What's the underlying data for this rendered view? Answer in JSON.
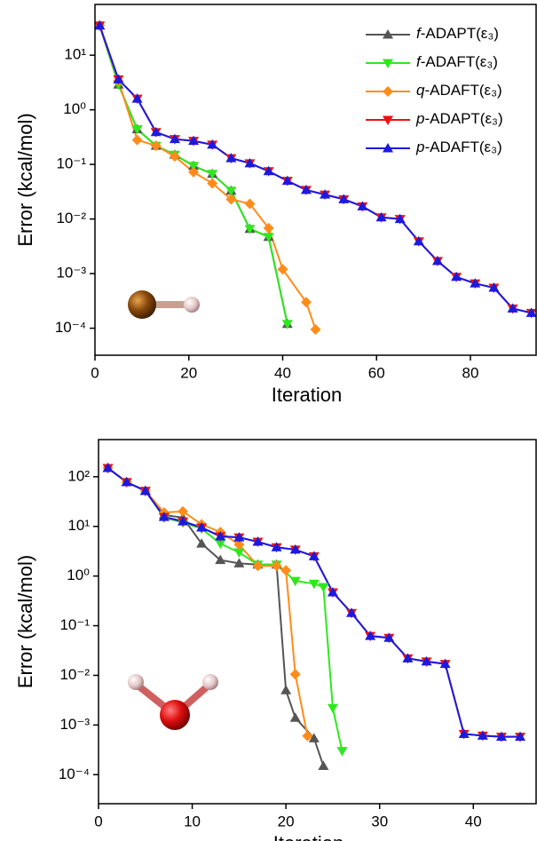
{
  "chart_data": [
    {
      "type": "line",
      "x_label": "Iteration",
      "y_label": "Error (kcal/mol)",
      "yscale": "log",
      "legend": "upper right",
      "xlim": [
        0,
        94
      ],
      "xticks": [
        0,
        20,
        40,
        60,
        80
      ],
      "ylim": [
        3.2e-05,
        85
      ],
      "yticks": [
        {
          "value": 0.0001,
          "label": "10⁻⁴"
        },
        {
          "value": 0.001,
          "label": "10⁻³"
        },
        {
          "value": 0.01,
          "label": "10⁻²"
        },
        {
          "value": 0.1,
          "label": "10⁻¹"
        },
        {
          "value": 1,
          "label": "10⁰"
        },
        {
          "value": 10,
          "label": "10¹"
        }
      ],
      "series": [
        {
          "name": "f-ADAPT(ε₃)",
          "color": "#555555",
          "marker": "triangle-up",
          "x": [
            1,
            5,
            9,
            13,
            17,
            21,
            25,
            29,
            33,
            37,
            41
          ],
          "values": [
            35,
            2.9,
            0.44,
            0.22,
            0.15,
            0.094,
            0.067,
            0.033,
            0.0066,
            0.0047,
            0.00012
          ]
        },
        {
          "name": "f-ADAFT(ε₃)",
          "color": "#2ee81e",
          "marker": "triangle-down",
          "x": [
            1,
            5,
            9,
            13,
            17,
            21,
            25,
            29,
            33,
            37,
            41
          ],
          "values": [
            35,
            2.9,
            0.44,
            0.22,
            0.15,
            0.094,
            0.067,
            0.033,
            0.0066,
            0.0047,
            0.00012
          ]
        },
        {
          "name": "q-ADAFT(ε₃)",
          "color": "#ff8c1a",
          "marker": "diamond",
          "x": [
            1,
            5,
            9,
            13,
            17,
            21,
            25,
            29,
            33,
            37,
            40,
            45,
            47
          ],
          "values": [
            35,
            3.4,
            0.28,
            0.22,
            0.14,
            0.072,
            0.045,
            0.023,
            0.019,
            0.0068,
            0.0012,
            0.0003,
            9.5e-05
          ]
        },
        {
          "name": "p-ADAPT(ε₃)",
          "color": "#ee1111",
          "marker": "triangle-down",
          "x": [
            1,
            5,
            9,
            13,
            17,
            21,
            25,
            29,
            33,
            37,
            41,
            45,
            49,
            53,
            57,
            61,
            65,
            69,
            73,
            77,
            81,
            85,
            89,
            93
          ],
          "values": [
            35,
            3.6,
            1.6,
            0.39,
            0.29,
            0.27,
            0.23,
            0.13,
            0.105,
            0.075,
            0.05,
            0.034,
            0.028,
            0.023,
            0.017,
            0.0107,
            0.01,
            0.0039,
            0.0017,
            0.00087,
            0.00066,
            0.00055,
            0.00023,
            0.00019
          ]
        },
        {
          "name": "p-ADAFT(ε₃)",
          "color": "#1a1ae0",
          "marker": "triangle-up",
          "x": [
            1,
            5,
            9,
            13,
            17,
            21,
            25,
            29,
            33,
            37,
            41,
            45,
            49,
            53,
            57,
            61,
            65,
            69,
            73,
            77,
            81,
            85,
            89,
            93
          ],
          "values": [
            35,
            3.6,
            1.6,
            0.39,
            0.29,
            0.27,
            0.23,
            0.13,
            0.105,
            0.075,
            0.05,
            0.034,
            0.028,
            0.023,
            0.017,
            0.0107,
            0.01,
            0.0039,
            0.0017,
            0.00087,
            0.00066,
            0.00055,
            0.00023,
            0.00019
          ]
        }
      ]
    },
    {
      "type": "line",
      "x_label": "Iteration",
      "y_label": "Error (kcal/mol)",
      "yscale": "log",
      "xlim": [
        0,
        46.7
      ],
      "xticks": [
        0,
        10,
        20,
        30,
        40
      ],
      "ylim": [
        2.6e-05,
        560
      ],
      "yticks": [
        {
          "value": 0.0001,
          "label": "10⁻⁴"
        },
        {
          "value": 0.001,
          "label": "10⁻³"
        },
        {
          "value": 0.01,
          "label": "10⁻²"
        },
        {
          "value": 0.1,
          "label": "10⁻¹"
        },
        {
          "value": 1,
          "label": "10⁰"
        },
        {
          "value": 10,
          "label": "10¹"
        },
        {
          "value": 100,
          "label": "10²"
        }
      ],
      "series": [
        {
          "color": "#555555",
          "marker": "triangle-up",
          "x": [
            1,
            3,
            5,
            7,
            9,
            11,
            13,
            15,
            17,
            19,
            20,
            21,
            23,
            24
          ],
          "values": [
            150,
            78,
            52,
            17,
            15,
            4.5,
            2.1,
            1.8,
            1.7,
            1.7,
            0.005,
            0.0014,
            0.00054,
            0.00015
          ]
        },
        {
          "color": "#2ee81e",
          "marker": "triangle-down",
          "x": [
            1,
            3,
            5,
            7,
            9,
            11,
            13,
            15,
            17,
            19,
            21,
            23,
            24,
            25,
            26
          ],
          "values": [
            150,
            78,
            52,
            15,
            12,
            9,
            4.5,
            3,
            1.7,
            1.7,
            0.8,
            0.7,
            0.6,
            0.0022,
            0.0003
          ]
        },
        {
          "color": "#ff8c1a",
          "marker": "diamond",
          "x": [
            1,
            3,
            5,
            7,
            9,
            11,
            13,
            15,
            17,
            19,
            20,
            21,
            22.3
          ],
          "values": [
            150,
            78,
            52,
            19,
            20,
            11,
            7.7,
            4.3,
            1.6,
            1.6,
            1.3,
            0.0105,
            0.0006
          ]
        },
        {
          "color": "#ee1111",
          "marker": "triangle-down",
          "x": [
            1,
            3,
            5,
            7,
            9,
            11,
            13,
            15,
            17,
            19,
            21,
            23,
            25,
            27,
            29,
            31,
            33,
            35,
            37,
            39,
            41,
            43,
            45
          ],
          "values": [
            150,
            78,
            52,
            15.5,
            12.6,
            9.5,
            6.3,
            6,
            4.9,
            3.8,
            3.4,
            2.5,
            0.47,
            0.18,
            0.062,
            0.057,
            0.022,
            0.019,
            0.017,
            0.00066,
            0.00061,
            0.00058,
            0.00058
          ]
        },
        {
          "color": "#1a1ae0",
          "marker": "triangle-up",
          "x": [
            1,
            3,
            5,
            7,
            9,
            11,
            13,
            15,
            17,
            19,
            21,
            23,
            25,
            27,
            29,
            31,
            33,
            35,
            37,
            39,
            41,
            43,
            45
          ],
          "values": [
            150,
            78,
            52,
            15.5,
            12.6,
            9.5,
            6.3,
            6,
            4.9,
            3.8,
            3.4,
            2.5,
            0.47,
            0.18,
            0.062,
            0.057,
            0.022,
            0.019,
            0.017,
            0.00066,
            0.00061,
            0.00058,
            0.00058
          ]
        }
      ]
    }
  ]
}
